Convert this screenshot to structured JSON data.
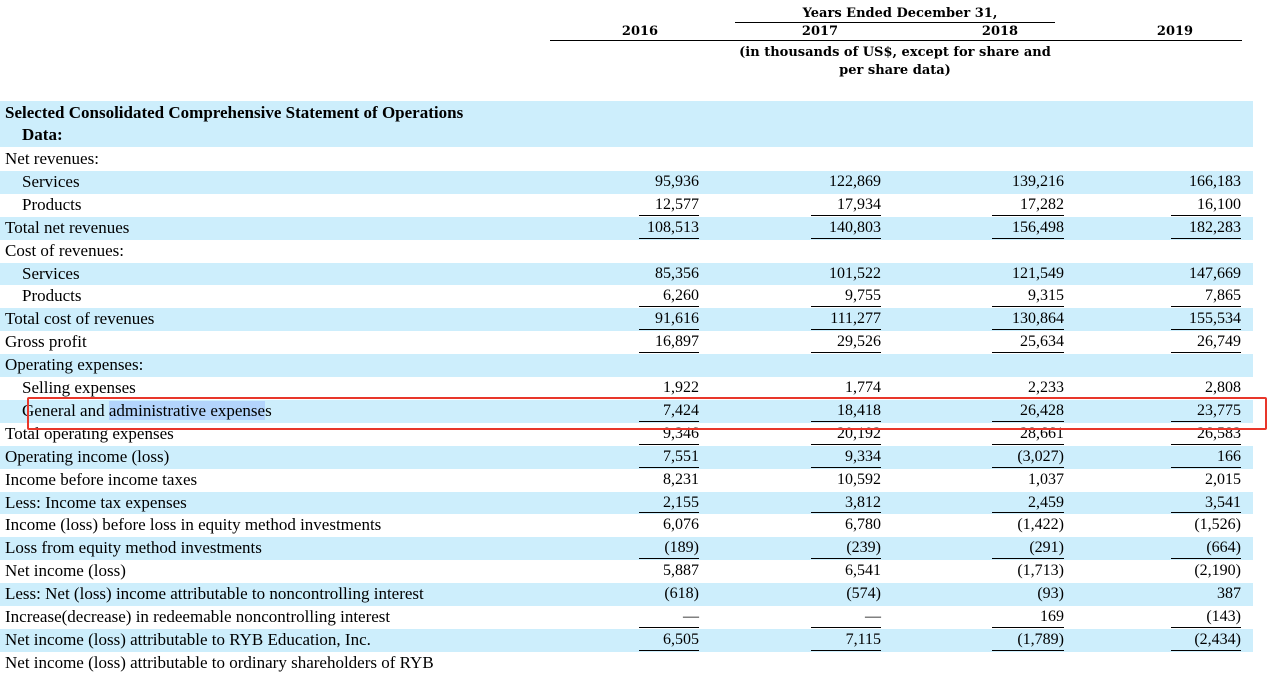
{
  "header": {
    "period": "Years Ended December 31,",
    "years": [
      "2016",
      "2017",
      "2018",
      "2019"
    ],
    "unit_line1": "(in thousands of US$, except for share and",
    "unit_line2": "per share data)"
  },
  "section_title": {
    "line1": "Selected Consolidated Comprehensive Statement of Operations",
    "line2": "Data:"
  },
  "rows": [
    {
      "label": "Net revenues:",
      "indent": 0,
      "shade": false,
      "values": [
        "",
        "",
        "",
        ""
      ]
    },
    {
      "label": "Services",
      "indent": 1,
      "shade": true,
      "values": [
        "95,936",
        "122,869",
        "139,216",
        "166,183"
      ]
    },
    {
      "label": "Products",
      "indent": 1,
      "shade": false,
      "values": [
        "12,577",
        "17,934",
        "17,282",
        "16,100"
      ],
      "under": true
    },
    {
      "label": "Total net revenues",
      "indent": 0,
      "shade": true,
      "values": [
        "108,513",
        "140,803",
        "156,498",
        "182,283"
      ],
      "under": true
    },
    {
      "label": "Cost of revenues:",
      "indent": 0,
      "shade": false,
      "values": [
        "",
        "",
        "",
        ""
      ]
    },
    {
      "label": "Services",
      "indent": 1,
      "shade": true,
      "values": [
        "85,356",
        "101,522",
        "121,549",
        "147,669"
      ]
    },
    {
      "label": "Products",
      "indent": 1,
      "shade": false,
      "values": [
        "6,260",
        "9,755",
        "9,315",
        "7,865"
      ],
      "under": true
    },
    {
      "label": "Total cost of revenues",
      "indent": 0,
      "shade": true,
      "values": [
        "91,616",
        "111,277",
        "130,864",
        "155,534"
      ],
      "under": true
    },
    {
      "label": "Gross profit",
      "indent": 0,
      "shade": false,
      "values": [
        "16,897",
        "29,526",
        "25,634",
        "26,749"
      ],
      "under": true
    },
    {
      "label": "Operating expenses:",
      "indent": 0,
      "shade": true,
      "values": [
        "",
        "",
        "",
        ""
      ]
    },
    {
      "label": "Selling expenses",
      "indent": 1,
      "shade": false,
      "values": [
        "1,922",
        "1,774",
        "2,233",
        "2,808"
      ]
    },
    {
      "label_pre": "General and ",
      "label_hl": "administrative expense",
      "label_post": "s",
      "indent": 1,
      "shade": true,
      "values": [
        "7,424",
        "18,418",
        "26,428",
        "23,775"
      ],
      "under": true,
      "highlighted": true
    },
    {
      "label": "Total operating expenses",
      "indent": 0,
      "shade": false,
      "values": [
        "9,346",
        "20,192",
        "28,661",
        "26,583"
      ],
      "under": true
    },
    {
      "label": "Operating income (loss)",
      "indent": 0,
      "shade": true,
      "values": [
        "7,551",
        "9,334",
        "(3,027)",
        "166"
      ],
      "under": true
    },
    {
      "label": "Income before income taxes",
      "indent": 0,
      "shade": false,
      "values": [
        "8,231",
        "10,592",
        "1,037",
        "2,015"
      ]
    },
    {
      "label": "Less: Income tax expenses",
      "indent": 0,
      "shade": true,
      "values": [
        "2,155",
        "3,812",
        "2,459",
        "3,541"
      ],
      "under": true
    },
    {
      "label": "Income (loss) before loss in equity method investments",
      "indent": 0,
      "shade": false,
      "values": [
        "6,076",
        "6,780",
        "(1,422)",
        "(1,526)"
      ]
    },
    {
      "label": "Loss from equity method investments",
      "indent": 0,
      "shade": true,
      "values": [
        "(189)",
        "(239)",
        "(291)",
        "(664)"
      ],
      "under": true
    },
    {
      "label": "Net income (loss)",
      "indent": 0,
      "shade": false,
      "values": [
        "5,887",
        "6,541",
        "(1,713)",
        "(2,190)"
      ]
    },
    {
      "label": "Less: Net (loss) income attributable to noncontrolling interest",
      "indent": 0,
      "shade": true,
      "values": [
        "(618)",
        "(574)",
        "(93)",
        "387"
      ]
    },
    {
      "label": "Increase(decrease) in redeemable noncontrolling interest",
      "indent": 0,
      "shade": false,
      "values": [
        "—",
        "—",
        "169",
        "(143)"
      ],
      "under": true
    },
    {
      "label": "Net income (loss) attributable to RYB Education, Inc.",
      "indent": 0,
      "shade": true,
      "values": [
        "6,505",
        "7,115",
        "(1,789)",
        "(2,434)"
      ],
      "under": true
    },
    {
      "label": "Net income (loss) attributable to ordinary shareholders of RYB",
      "indent": 0,
      "shade": false,
      "values": [
        "",
        "",
        "",
        ""
      ]
    }
  ],
  "colors": {
    "stripe": "#cdeefc",
    "selection": "#b3d4fc",
    "annotation_box": "#e8362a"
  }
}
